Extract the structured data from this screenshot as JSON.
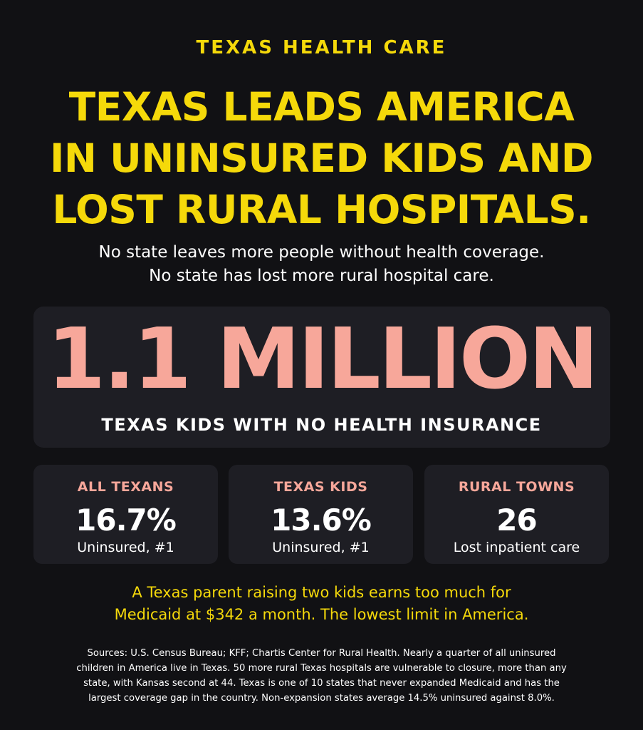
{
  "eyebrow": "TEXAS HEALTH CARE",
  "headline": {
    "line1": "TEXAS LEADS AMERICA",
    "line2": "IN UNINSURED KIDS AND",
    "line3": "LOST RURAL HOSPITALS."
  },
  "subhead": {
    "line1": "No state leaves more people without health coverage.",
    "line2": "No state has lost more rural hospital care."
  },
  "hero": {
    "number": "1.1 MILLION",
    "label": "TEXAS KIDS WITH NO HEALTH INSURANCE"
  },
  "stats": [
    {
      "title": "ALL TEXANS",
      "value": "16.7%",
      "sub": "Uninsured, #1"
    },
    {
      "title": "TEXAS KIDS",
      "value": "13.6%",
      "sub": "Uninsured, #1"
    },
    {
      "title": "RURAL TOWNS",
      "value": "26",
      "sub": "Lost inpatient care"
    }
  ],
  "callout": {
    "line1": "A Texas parent raising two kids earns too much for",
    "line2": "Medicaid at $342 a month. The lowest limit in America."
  },
  "sources": {
    "line1": "Sources: U.S. Census Bureau; KFF; Chartis Center for Rural Health. Nearly a quarter of all uninsured",
    "line2": "children in America live in Texas. 50 more rural Texas hospitals are vulnerable to closure, more than any",
    "line3": "state, with Kansas second at 44. Texas is one of 10 states that never expanded Medicaid and has the",
    "line4": "largest coverage gap in the country. Non-expansion states average 14.5% uninsured against 8.0%."
  },
  "colors": {
    "background": "#111114",
    "card": "#1e1e24",
    "accent_yellow": "#f5d90a",
    "accent_salmon": "#f7a79a",
    "text": "#ffffff"
  }
}
